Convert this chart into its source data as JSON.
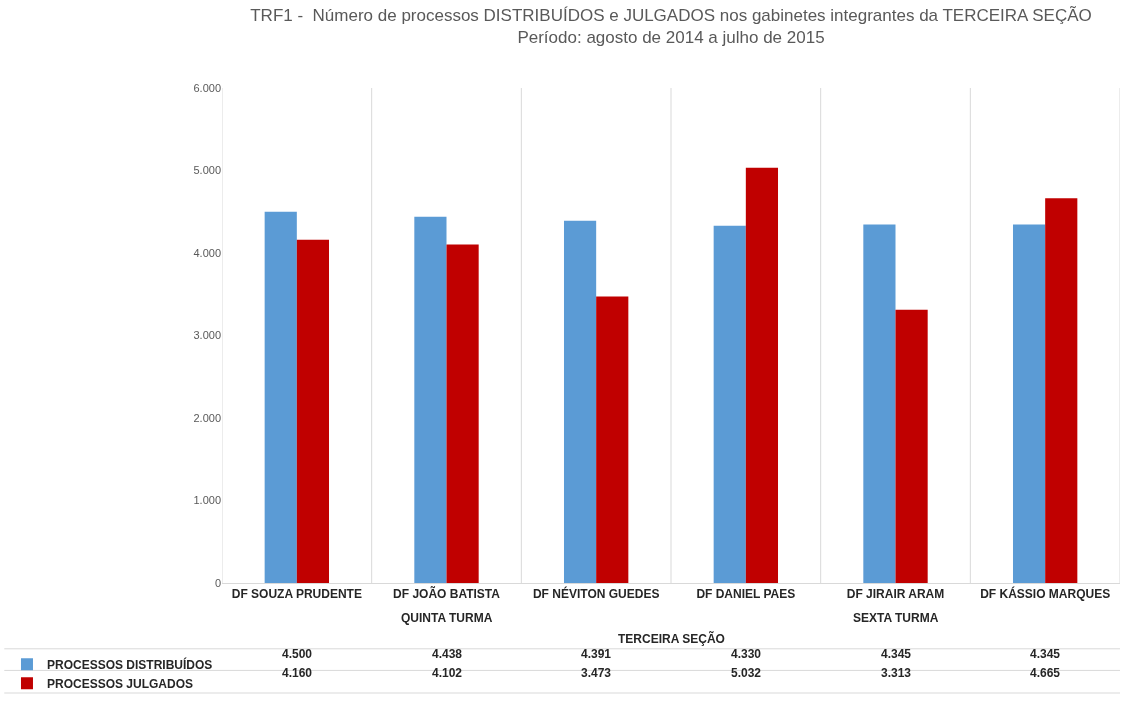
{
  "chart_data": {
    "type": "bar",
    "title": "TRF1 -  Número de processos DISTRIBUÍDOS e JULGADOS nos gabinetes integrantes da TERCEIRA SEÇÃO\nPeríodo: agosto de 2014 a julho de 2015",
    "categories": [
      "DF SOUZA PRUDENTE",
      "DF JOÃO BATISTA",
      "DF NÉVITON GUEDES",
      "DF DANIEL PAES",
      "DF JIRAIR ARAM",
      "DF KÁSSIO MARQUES"
    ],
    "series": [
      {
        "name": "PROCESSOS DISTRIBUÍDOS",
        "color": "#5b9bd5",
        "values": [
          4500,
          4438,
          4391,
          4330,
          4345,
          4345
        ],
        "value_labels": [
          "4.500",
          "4.438",
          "4.391",
          "4.330",
          "4.345",
          "4.345"
        ]
      },
      {
        "name": "PROCESSOS JULGADOS",
        "color": "#c00000",
        "values": [
          4160,
          4102,
          3473,
          5032,
          3313,
          4665
        ],
        "value_labels": [
          "4.160",
          "4.102",
          "3.473",
          "5.032",
          "3.313",
          "4.665"
        ]
      }
    ],
    "annotations": [
      "QUINTA TURMA",
      "SEXTA TURMA",
      "TERCEIRA SEÇÃO"
    ],
    "ylim": [
      0,
      6000
    ],
    "yticks": [
      {
        "value": 0,
        "label": "0"
      },
      {
        "value": 1000,
        "label": "1.000"
      },
      {
        "value": 2000,
        "label": "2.000"
      },
      {
        "value": 3000,
        "label": "3.000"
      },
      {
        "value": 4000,
        "label": "4.000"
      },
      {
        "value": 5000,
        "label": "5.000"
      },
      {
        "value": 6000,
        "label": "6.000"
      }
    ],
    "grid": "x",
    "legend": "bottom left"
  }
}
